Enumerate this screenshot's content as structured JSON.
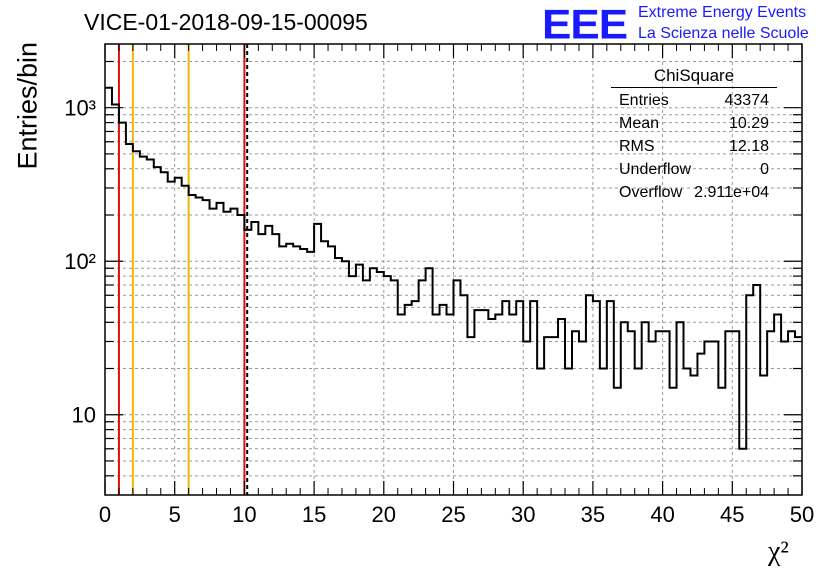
{
  "header": {
    "title": "VICE-01-2018-09-15-00095",
    "logo_text": "EEE",
    "logo_line1": "Extreme Energy Events",
    "logo_line2": "La Scienza nelle Scuole"
  },
  "stats_box": {
    "title": "ChiSquare",
    "rows": [
      {
        "key": "Entries",
        "value": "43374"
      },
      {
        "key": "Mean",
        "value": "10.29"
      },
      {
        "key": "RMS",
        "value": "12.18"
      },
      {
        "key": "Underflow",
        "value": "0"
      },
      {
        "key": "Overflow",
        "value": "2.911e+04"
      }
    ]
  },
  "colors": {
    "histogram": "#000000",
    "red_line": "#dd1111",
    "orange_line": "#f0b800",
    "grid": "#999999"
  },
  "chart_data": {
    "type": "histogram",
    "title": "VICE-01-2018-09-15-00095",
    "xlabel": "χ²",
    "ylabel": "Entries/bin",
    "xlim": [
      0,
      50
    ],
    "ylim": [
      3,
      2600
    ],
    "yscale": "log",
    "grid": true,
    "x_ticks": [
      0,
      5,
      10,
      15,
      20,
      25,
      30,
      35,
      40,
      45,
      50
    ],
    "y_ticks": [
      10,
      100,
      1000
    ],
    "y_tick_labels": [
      "10",
      "10²",
      "10³"
    ],
    "bin_width": 0.5,
    "values": [
      1350,
      1050,
      800,
      580,
      520,
      480,
      460,
      410,
      380,
      330,
      350,
      310,
      270,
      260,
      250,
      220,
      240,
      210,
      220,
      200,
      160,
      180,
      150,
      170,
      150,
      125,
      130,
      125,
      120,
      115,
      175,
      135,
      125,
      105,
      100,
      80,
      95,
      75,
      90,
      85,
      80,
      75,
      45,
      52,
      55,
      75,
      90,
      45,
      52,
      45,
      75,
      60,
      32,
      48,
      48,
      42,
      45,
      55,
      45,
      55,
      30,
      55,
      20,
      32,
      32,
      42,
      20,
      35,
      30,
      60,
      55,
      20,
      55,
      15,
      40,
      35,
      20,
      40,
      30,
      35,
      35,
      15,
      40,
      20,
      18,
      25,
      30,
      30,
      15,
      35,
      35,
      6,
      60,
      70,
      18,
      35,
      45,
      30,
      35,
      32
    ],
    "vertical_lines": [
      {
        "x": 1,
        "color": "red",
        "style": "solid"
      },
      {
        "x": 2,
        "color": "orange",
        "style": "solid"
      },
      {
        "x": 6,
        "color": "orange",
        "style": "solid"
      },
      {
        "x": 10,
        "color": "red",
        "style": "solid"
      },
      {
        "x": 10.2,
        "color": "black",
        "style": "dashed"
      }
    ]
  }
}
